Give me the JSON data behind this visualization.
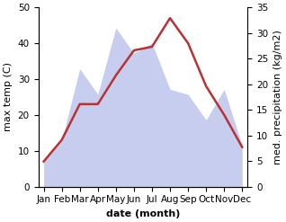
{
  "months": [
    "Jan",
    "Feb",
    "Mar",
    "Apr",
    "May",
    "Jun",
    "Jul",
    "Aug",
    "Sep",
    "Oct",
    "Nov",
    "Dec"
  ],
  "max_temp": [
    7,
    13,
    23,
    23,
    31,
    38,
    39,
    47,
    40,
    28,
    20,
    11
  ],
  "precipitation": [
    5,
    9,
    23,
    18,
    31,
    26,
    28,
    19,
    18,
    13,
    19,
    8
  ],
  "temp_color": "#b83232",
  "precip_color": "#b0b8e8",
  "left_ylim": [
    0,
    50
  ],
  "right_ylim": [
    0,
    35
  ],
  "left_yticks": [
    0,
    10,
    20,
    30,
    40,
    50
  ],
  "right_yticks": [
    0,
    5,
    10,
    15,
    20,
    25,
    30,
    35
  ],
  "xlabel": "date (month)",
  "ylabel_left": "max temp (C)",
  "ylabel_right": "med. precipitation (kg/m2)",
  "label_fontsize": 8,
  "tick_fontsize": 7.5
}
